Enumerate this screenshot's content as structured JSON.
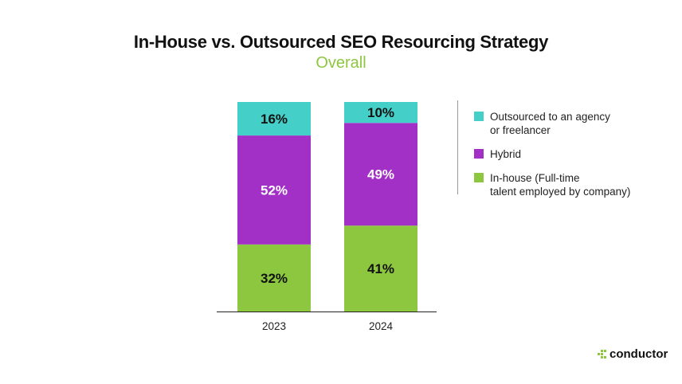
{
  "chart_data": {
    "type": "bar",
    "stacked": true,
    "title": "In-House vs. Outsourced SEO Resourcing Strategy",
    "subtitle": "Overall",
    "categories": [
      "2023",
      "2024"
    ],
    "series": [
      {
        "name": "In-house (Full-time\ntalent employed by company)",
        "values": [
          32,
          41
        ],
        "labels": [
          "32%",
          "41%"
        ],
        "color": "#8dc63f",
        "label_color": "#111111"
      },
      {
        "name": "Hybrid",
        "values": [
          52,
          49
        ],
        "labels": [
          "52%",
          "49%"
        ],
        "color": "#a22fc6",
        "label_color": "#ffffff"
      },
      {
        "name": "Outsourced to an agency\nor freelancer",
        "values": [
          16,
          10
        ],
        "labels": [
          "16%",
          "10%"
        ],
        "color": "#44cfc8",
        "label_color": "#111111"
      }
    ],
    "ylim": [
      0,
      100
    ],
    "grid": false,
    "legend_position": "right"
  },
  "legend_order": [
    2,
    1,
    0
  ],
  "brand": {
    "name": "conductor",
    "color": "#8dc63f"
  }
}
